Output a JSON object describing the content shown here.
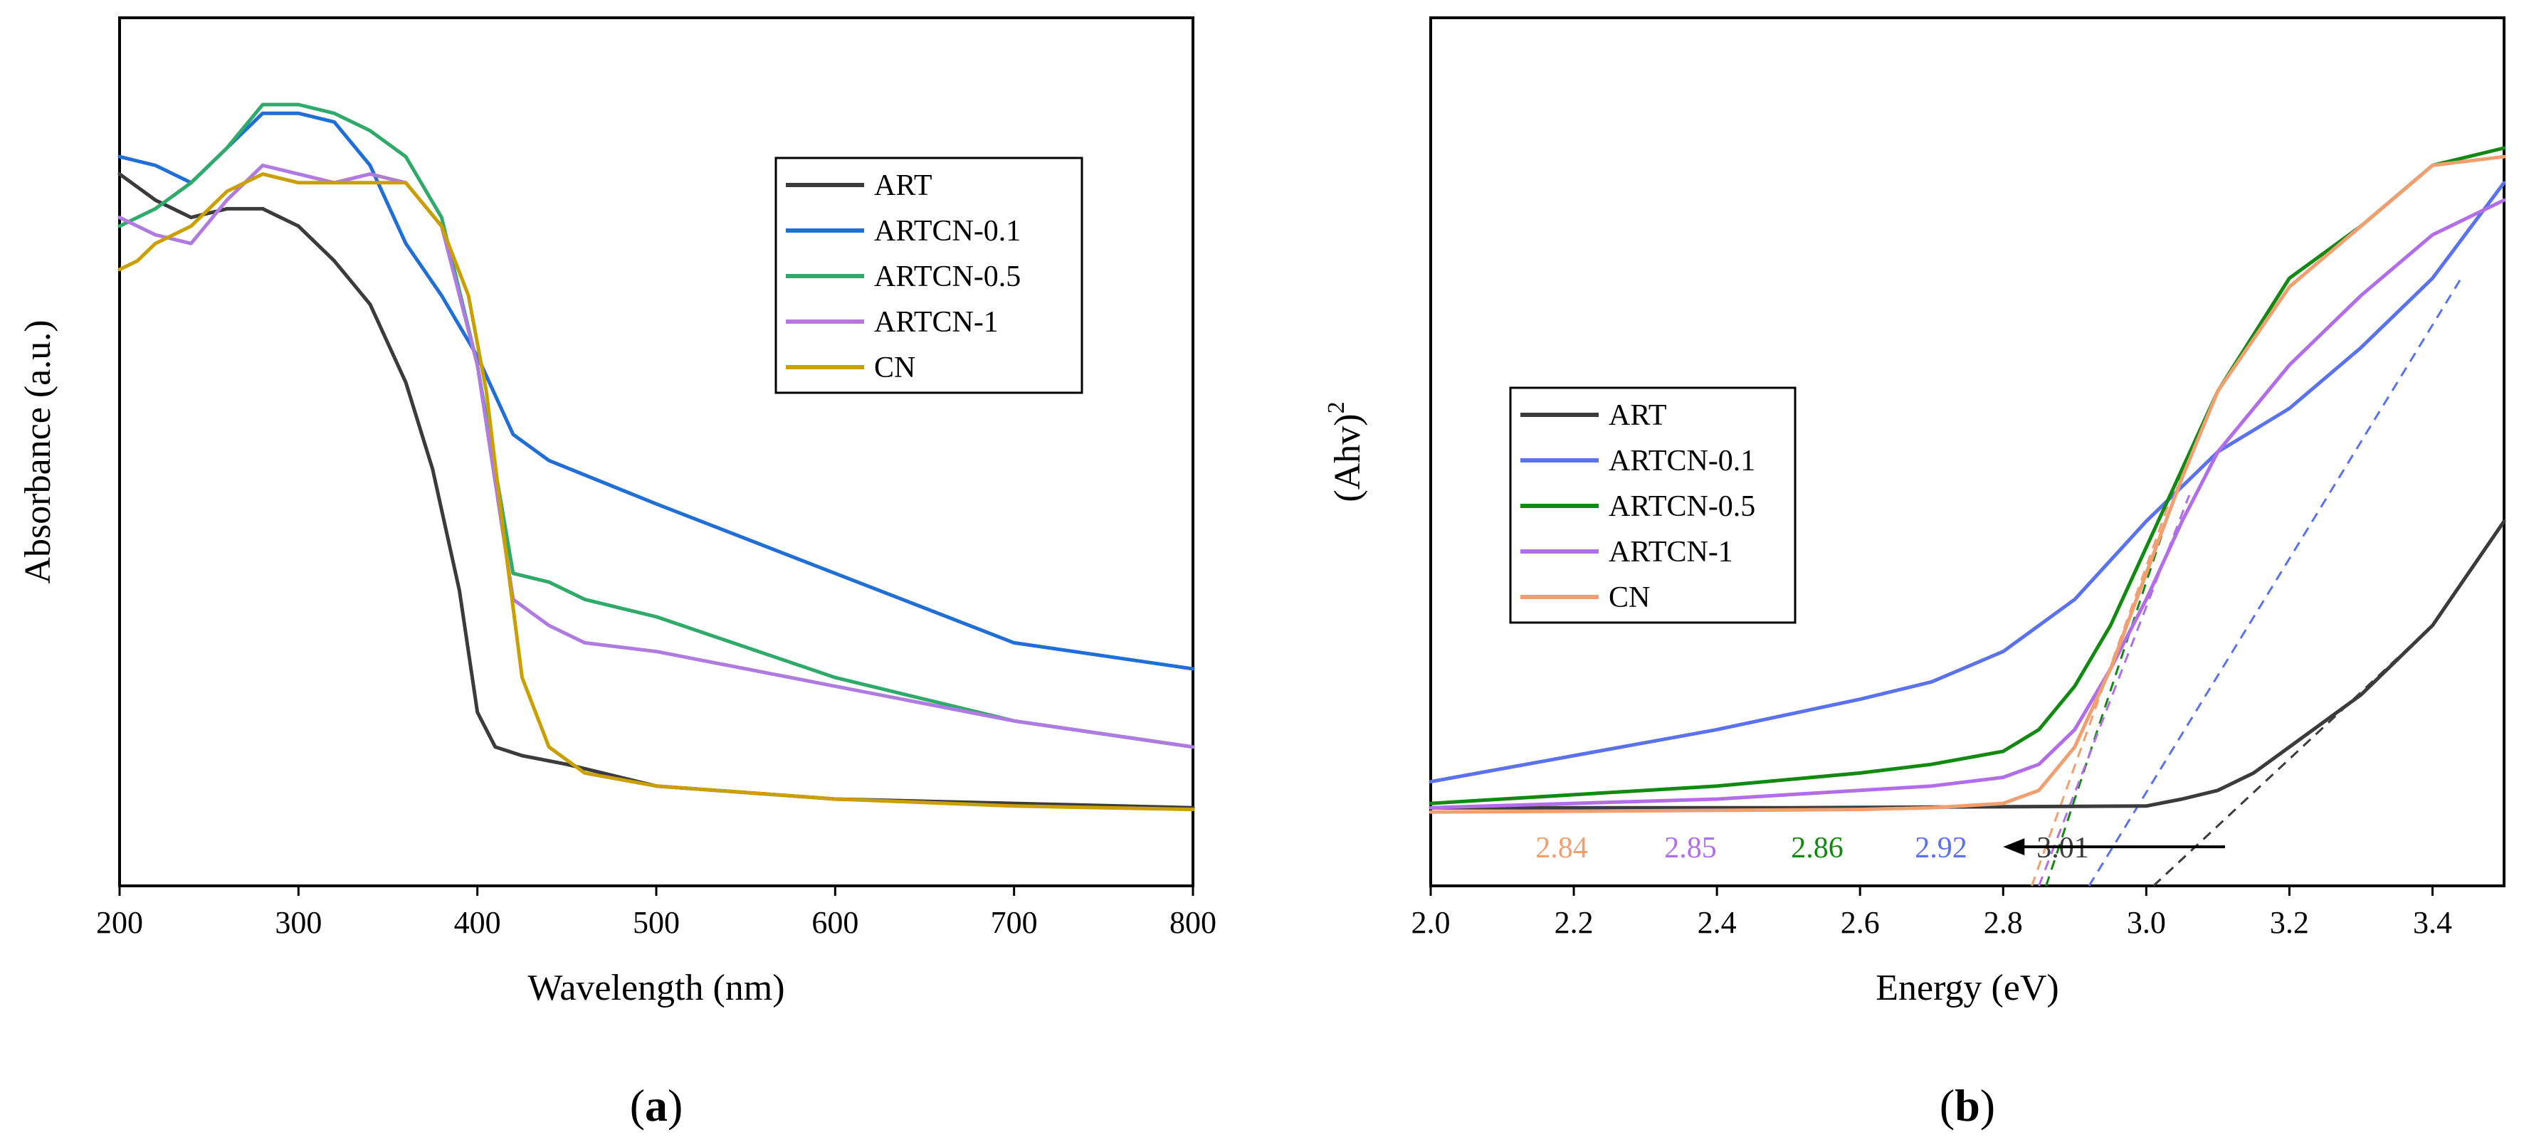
{
  "panel_labels": {
    "a_open": "(",
    "a_letter": "a",
    "a_close": ")",
    "b_open": "(",
    "b_letter": "b",
    "b_close": ")"
  },
  "colors": {
    "ART": "#3b3b3b",
    "ARTCN-0.1_a": "#1f6fd6",
    "ARTCN-0.5_a": "#2faa6a",
    "ARTCN-1_a": "#b07be0",
    "CN_a": "#c9a000",
    "ARTCN-0.1_b": "#5b72ee",
    "ARTCN-0.5_b": "#128a12",
    "ARTCN-1_b": "#b16ee8",
    "CN_b": "#f0a070"
  },
  "chart_data": [
    {
      "id": "a",
      "type": "line",
      "title": "",
      "xlabel": "Wavelength (nm)",
      "ylabel": "Absorbance (a.u.)",
      "xlim": [
        200,
        800
      ],
      "ylim": [
        0,
        1.0
      ],
      "xticks": [
        200,
        300,
        400,
        500,
        600,
        700,
        800
      ],
      "xtick_labels": [
        "200",
        "300",
        "400",
        "500",
        "600",
        "700",
        "800"
      ],
      "legend_position": "top-right",
      "series": [
        {
          "name": "ART",
          "color_key": "ART",
          "x": [
            200,
            220,
            240,
            260,
            280,
            300,
            320,
            340,
            360,
            375,
            390,
            400,
            410,
            425,
            450,
            500,
            600,
            700,
            800
          ],
          "y": [
            0.82,
            0.79,
            0.77,
            0.78,
            0.78,
            0.76,
            0.72,
            0.67,
            0.58,
            0.48,
            0.34,
            0.2,
            0.16,
            0.15,
            0.14,
            0.115,
            0.1,
            0.095,
            0.09
          ]
        },
        {
          "name": "ARTCN-0.1",
          "color_key": "ARTCN-0.1_a",
          "x": [
            200,
            220,
            240,
            260,
            280,
            300,
            320,
            340,
            360,
            380,
            400,
            420,
            440,
            500,
            600,
            700,
            800
          ],
          "y": [
            0.84,
            0.83,
            0.81,
            0.85,
            0.89,
            0.89,
            0.88,
            0.83,
            0.74,
            0.68,
            0.61,
            0.52,
            0.49,
            0.44,
            0.36,
            0.28,
            0.25
          ]
        },
        {
          "name": "ARTCN-0.5",
          "color_key": "ARTCN-0.5_a",
          "x": [
            200,
            220,
            240,
            260,
            280,
            300,
            320,
            340,
            360,
            380,
            400,
            420,
            440,
            460,
            500,
            600,
            700,
            800
          ],
          "y": [
            0.76,
            0.78,
            0.81,
            0.85,
            0.9,
            0.9,
            0.89,
            0.87,
            0.84,
            0.77,
            0.6,
            0.36,
            0.35,
            0.33,
            0.31,
            0.24,
            0.19,
            0.16
          ]
        },
        {
          "name": "ARTCN-1",
          "color_key": "ARTCN-1_a",
          "x": [
            200,
            220,
            240,
            260,
            280,
            300,
            320,
            340,
            360,
            380,
            400,
            420,
            440,
            460,
            500,
            600,
            700,
            800
          ],
          "y": [
            0.77,
            0.75,
            0.74,
            0.79,
            0.83,
            0.82,
            0.81,
            0.82,
            0.81,
            0.76,
            0.6,
            0.33,
            0.3,
            0.28,
            0.27,
            0.23,
            0.19,
            0.16
          ]
        },
        {
          "name": "CN",
          "color_key": "CN_a",
          "x": [
            200,
            210,
            220,
            240,
            260,
            280,
            300,
            320,
            340,
            360,
            380,
            395,
            405,
            415,
            425,
            440,
            460,
            500,
            600,
            700,
            800
          ],
          "y": [
            0.71,
            0.72,
            0.74,
            0.76,
            0.8,
            0.82,
            0.81,
            0.81,
            0.81,
            0.81,
            0.76,
            0.68,
            0.57,
            0.4,
            0.24,
            0.16,
            0.13,
            0.115,
            0.1,
            0.092,
            0.088
          ]
        }
      ]
    },
    {
      "id": "b",
      "type": "line",
      "title": "",
      "xlabel": "Energy (eV)",
      "ylabel_main": "(Ahv)",
      "ylabel_sup": "2",
      "xlim": [
        2.0,
        3.5
      ],
      "ylim": [
        0,
        1.0
      ],
      "xticks": [
        2.0,
        2.2,
        2.4,
        2.6,
        2.8,
        3.0,
        3.2,
        3.4
      ],
      "xtick_labels": [
        "2.0",
        "2.2",
        "2.4",
        "2.6",
        "2.8",
        "3.0",
        "3.2",
        "3.4"
      ],
      "legend_position": "middle-left",
      "series": [
        {
          "name": "ART",
          "color_key": "ART",
          "x": [
            2.0,
            2.5,
            3.0,
            3.05,
            3.1,
            3.15,
            3.2,
            3.25,
            3.3,
            3.35,
            3.4,
            3.45,
            3.5
          ],
          "y": [
            0.09,
            0.09,
            0.092,
            0.1,
            0.11,
            0.13,
            0.16,
            0.19,
            0.22,
            0.26,
            0.3,
            0.36,
            0.42
          ]
        },
        {
          "name": "ARTCN-0.1",
          "color_key": "ARTCN-0.1_b",
          "x": [
            2.0,
            2.2,
            2.4,
            2.6,
            2.7,
            2.8,
            2.9,
            3.0,
            3.1,
            3.2,
            3.3,
            3.4,
            3.5
          ],
          "y": [
            0.12,
            0.15,
            0.18,
            0.215,
            0.235,
            0.27,
            0.33,
            0.42,
            0.5,
            0.55,
            0.62,
            0.7,
            0.81
          ]
        },
        {
          "name": "ARTCN-0.5",
          "color_key": "ARTCN-0.5_b",
          "x": [
            2.0,
            2.2,
            2.4,
            2.6,
            2.7,
            2.8,
            2.85,
            2.9,
            2.95,
            3.0,
            3.05,
            3.1,
            3.2,
            3.3,
            3.4,
            3.5
          ],
          "y": [
            0.095,
            0.105,
            0.115,
            0.13,
            0.14,
            0.155,
            0.18,
            0.23,
            0.3,
            0.39,
            0.48,
            0.57,
            0.7,
            0.76,
            0.83,
            0.85
          ]
        },
        {
          "name": "ARTCN-1",
          "color_key": "ARTCN-1_b",
          "x": [
            2.0,
            2.2,
            2.4,
            2.6,
            2.7,
            2.8,
            2.85,
            2.9,
            2.95,
            3.0,
            3.05,
            3.1,
            3.2,
            3.3,
            3.4,
            3.5
          ],
          "y": [
            0.09,
            0.095,
            0.1,
            0.11,
            0.115,
            0.125,
            0.14,
            0.18,
            0.25,
            0.33,
            0.42,
            0.5,
            0.6,
            0.68,
            0.75,
            0.79
          ]
        },
        {
          "name": "CN",
          "color_key": "CN_b",
          "x": [
            2.0,
            2.2,
            2.4,
            2.6,
            2.7,
            2.8,
            2.85,
            2.9,
            2.95,
            3.0,
            3.05,
            3.1,
            3.2,
            3.3,
            3.4,
            3.5
          ],
          "y": [
            0.085,
            0.086,
            0.087,
            0.088,
            0.09,
            0.095,
            0.11,
            0.16,
            0.25,
            0.36,
            0.47,
            0.57,
            0.69,
            0.76,
            0.83,
            0.84
          ]
        }
      ],
      "tangent_lines": [
        {
          "color_key": "ART",
          "x": [
            3.01,
            3.4
          ],
          "y": [
            0.0,
            0.3
          ]
        },
        {
          "color_key": "ARTCN-0.1_b",
          "x": [
            2.92,
            3.44
          ],
          "y": [
            0.0,
            0.7
          ]
        },
        {
          "color_key": "ARTCN-0.5_b",
          "x": [
            2.86,
            3.06
          ],
          "y": [
            0.0,
            0.5
          ]
        },
        {
          "color_key": "ARTCN-1_b",
          "x": [
            2.85,
            3.06
          ],
          "y": [
            0.0,
            0.45
          ]
        },
        {
          "color_key": "CN_b",
          "x": [
            2.84,
            3.04
          ],
          "y": [
            0.0,
            0.46
          ]
        }
      ],
      "band_gaps": [
        {
          "label": "2.84",
          "color_key": "CN_b"
        },
        {
          "label": "2.85",
          "color_key": "ARTCN-1_b"
        },
        {
          "label": "2.86",
          "color_key": "ARTCN-0.5_b"
        },
        {
          "label": "2.92",
          "color_key": "ARTCN-0.1_b"
        },
        {
          "label": "3.01",
          "color_key": "ART"
        }
      ],
      "arrow": {
        "from_x": 3.11,
        "to_x": 2.8,
        "y": 0.045
      }
    }
  ]
}
